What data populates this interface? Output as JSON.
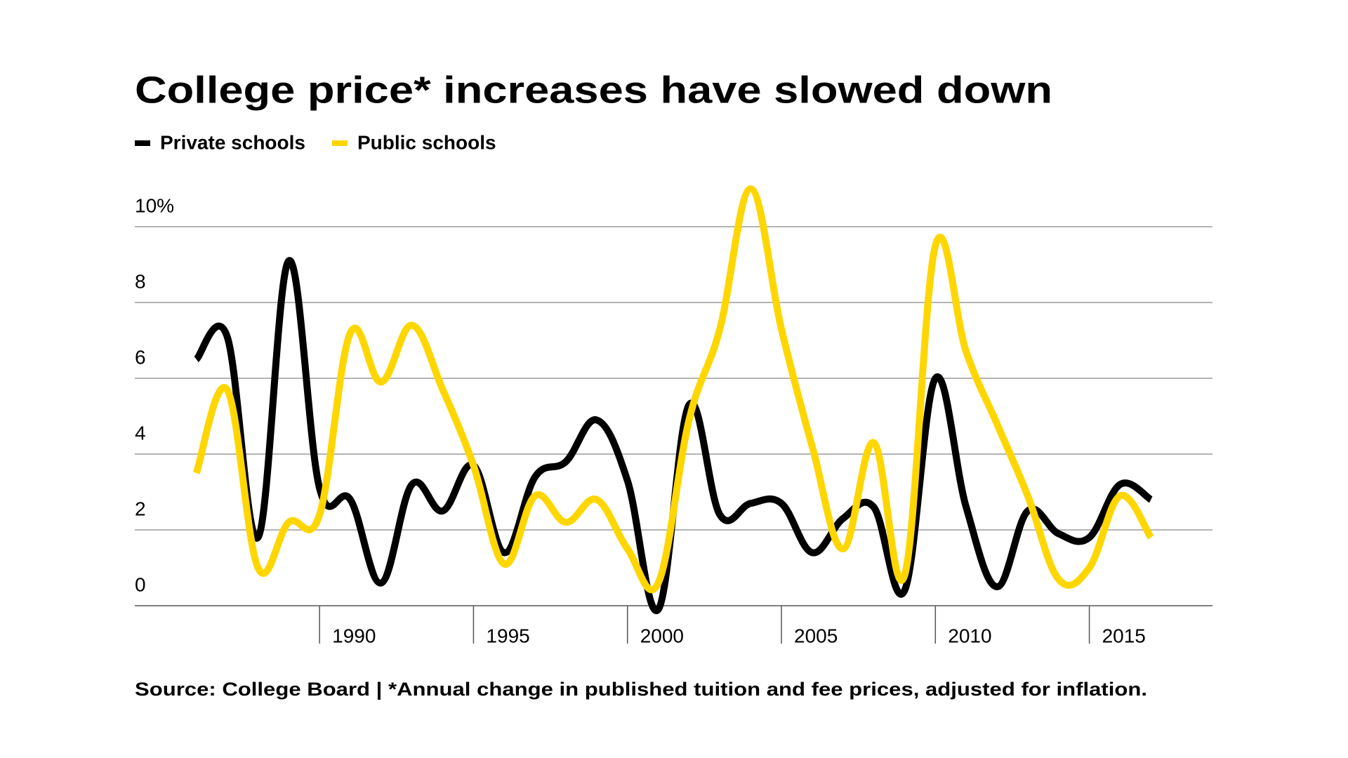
{
  "chart_data": {
    "type": "line",
    "title": "College price* increases have slowed down",
    "source": "Source: College Board | *Annual change in published tuition and fee prices, adjusted for inflation.",
    "x": [
      1986,
      1987,
      1988,
      1989,
      1990,
      1991,
      1992,
      1993,
      1994,
      1995,
      1996,
      1997,
      1998,
      1999,
      2000,
      2001,
      2002,
      2003,
      2004,
      2005,
      2006,
      2007,
      2008,
      2009,
      2010,
      2011,
      2012,
      2013,
      2014,
      2015,
      2016,
      2017
    ],
    "series": [
      {
        "name": "Private schools",
        "color": "#000000",
        "values": [
          6.5,
          7.1,
          1.8,
          9.1,
          3.1,
          2.8,
          0.6,
          3.2,
          2.5,
          3.7,
          1.4,
          3.4,
          3.8,
          4.9,
          3.3,
          -0.1,
          5.3,
          2.4,
          2.7,
          2.7,
          1.4,
          2.3,
          2.6,
          0.4,
          6.0,
          2.6,
          0.5,
          2.5,
          1.9,
          1.8,
          3.2,
          2.8
        ]
      },
      {
        "name": "Public schools",
        "color": "#ffd600",
        "values": [
          3.5,
          5.7,
          1.0,
          2.2,
          2.4,
          7.2,
          5.9,
          7.4,
          5.7,
          3.7,
          1.1,
          2.9,
          2.2,
          2.8,
          1.5,
          0.6,
          4.9,
          7.3,
          11.0,
          7.3,
          4.2,
          1.5,
          4.3,
          0.8,
          9.5,
          6.7,
          4.8,
          2.9,
          0.7,
          1.0,
          2.9,
          1.8
        ]
      }
    ],
    "xlim": [
      1984,
      2019
    ],
    "xticks": [
      1990,
      1995,
      2000,
      2005,
      2010,
      2015
    ],
    "ylim": [
      0,
      10
    ],
    "yticks": [
      0,
      2,
      4,
      6,
      8,
      {
        "value": 10,
        "label": "10%"
      }
    ],
    "grid": true
  }
}
